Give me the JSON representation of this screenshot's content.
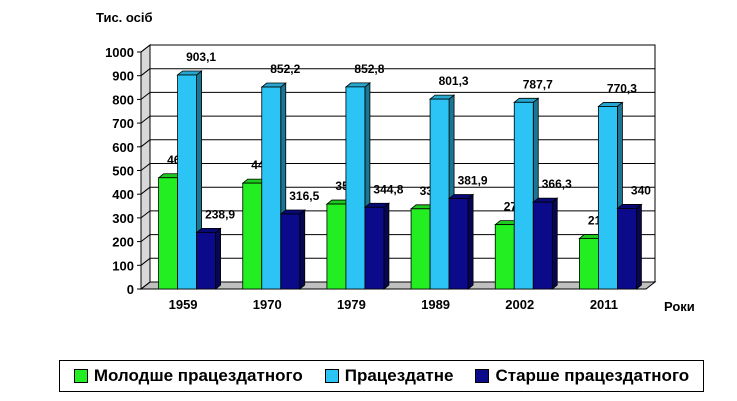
{
  "chart_data": {
    "type": "bar",
    "ylabel": "Тис. осіб",
    "xlabel": "Роки",
    "ylim": [
      0,
      1000
    ],
    "yticks": [
      0,
      100,
      200,
      300,
      400,
      500,
      600,
      700,
      800,
      900,
      1000
    ],
    "grid": true,
    "legend_position": "bottom",
    "categories": [
      "1959",
      "1970",
      "1979",
      "1989",
      "2002",
      "2011"
    ],
    "series": [
      {
        "name": "Молодше працездатного",
        "color": "#22ee22",
        "values": [
          469.4,
          446.7,
          358.4,
          338.4,
          271.6,
          213.4
        ],
        "labels": [
          "469,4",
          "446,7",
          "358,4",
          "338,4",
          "271,6",
          "213,4"
        ]
      },
      {
        "name": "Працездатне",
        "color": "#2bc4f5",
        "values": [
          903.1,
          852.2,
          852.8,
          801.3,
          787.7,
          770.3
        ],
        "labels": [
          "903,1",
          "852,2",
          "852,8",
          "801,3",
          "787,7",
          "770,3"
        ]
      },
      {
        "name": "Старше працездатного",
        "color": "#0a0a8a",
        "values": [
          238.9,
          316.5,
          344.8,
          381.9,
          366.3,
          340
        ],
        "labels": [
          "238,9",
          "316,5",
          "344,8",
          "381,9",
          "366,3",
          "340"
        ]
      }
    ]
  }
}
